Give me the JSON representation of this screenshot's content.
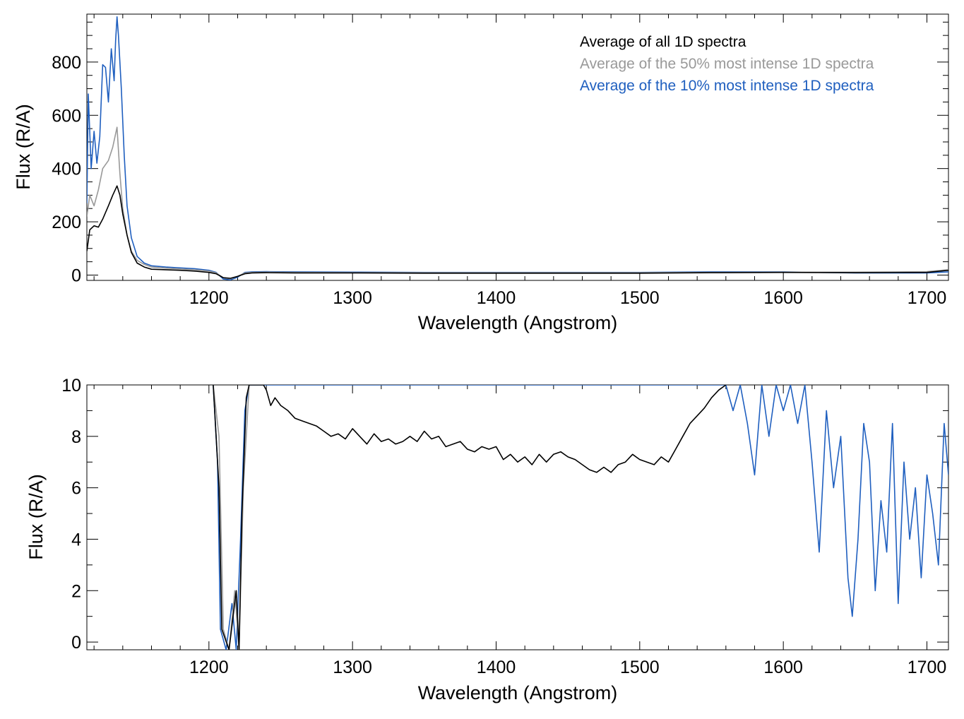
{
  "colors": {
    "all": "#000000",
    "top50": "#999999",
    "top10": "#1f5fbf"
  },
  "chart_data": [
    {
      "type": "line",
      "title": "",
      "xlabel": "Wavelength (Angstrom)",
      "ylabel": "Flux (R/A)",
      "xlim": [
        1115,
        1715
      ],
      "ylim": [
        -20,
        980
      ],
      "xticks": [
        1200,
        1300,
        1400,
        1500,
        1600,
        1700
      ],
      "xtick_labels": [
        "1200",
        "1300",
        "1400",
        "1500",
        "1600",
        "1700"
      ],
      "yticks": [
        0,
        200,
        400,
        600,
        800
      ],
      "ytick_labels": [
        "0",
        "200",
        "400",
        "600",
        "800"
      ],
      "legend": {
        "placement": "top-right",
        "entries": [
          "Average of all 1D spectra",
          "Average of the 50% most intense 1D spectra",
          "Average of the 10% most intense 1D spectra"
        ]
      },
      "series": [
        {
          "name": "Average of all 1D spectra",
          "x": [
            1115,
            1117,
            1120,
            1123,
            1126,
            1130,
            1133,
            1136,
            1138,
            1140,
            1143,
            1146,
            1150,
            1155,
            1160,
            1170,
            1180,
            1190,
            1200,
            1205,
            1210,
            1215,
            1220,
            1225,
            1230,
            1240,
            1260,
            1300,
            1350,
            1400,
            1450,
            1500,
            1550,
            1600,
            1650,
            1700,
            1715
          ],
          "y": [
            90,
            170,
            185,
            180,
            210,
            260,
            300,
            335,
            300,
            230,
            150,
            85,
            45,
            30,
            22,
            20,
            18,
            15,
            10,
            5,
            -10,
            -12,
            -5,
            5,
            8,
            9,
            8,
            8,
            7,
            7,
            7,
            7,
            9,
            10,
            9,
            10,
            18
          ]
        },
        {
          "name": "Average of the 50% most intense 1D spectra",
          "x": [
            1115,
            1117,
            1120,
            1123,
            1126,
            1130,
            1133,
            1136,
            1138,
            1140,
            1143,
            1146,
            1150,
            1155,
            1160,
            1170,
            1180,
            1190,
            1200,
            1205,
            1210,
            1215,
            1220,
            1225,
            1230,
            1240,
            1260,
            1300,
            1350,
            1400,
            1450,
            1500,
            1550,
            1600,
            1650,
            1700,
            1715
          ],
          "y": [
            220,
            300,
            260,
            320,
            400,
            430,
            480,
            555,
            380,
            250,
            150,
            90,
            55,
            40,
            30,
            26,
            23,
            20,
            15,
            8,
            -10,
            -14,
            -5,
            8,
            10,
            11,
            10,
            9,
            9,
            9,
            9,
            9,
            10,
            11,
            11,
            13,
            20
          ]
        },
        {
          "name": "Average of the 10% most intense 1D spectra",
          "x": [
            1115,
            1116,
            1118,
            1120,
            1122,
            1124,
            1126,
            1128,
            1130,
            1132,
            1134,
            1135,
            1136,
            1137,
            1139,
            1141,
            1143,
            1146,
            1150,
            1155,
            1160,
            1170,
            1180,
            1190,
            1200,
            1205,
            1210,
            1215,
            1220,
            1225,
            1230,
            1240,
            1260,
            1300,
            1350,
            1400,
            1450,
            1500,
            1550,
            1600,
            1650,
            1700,
            1715
          ],
          "y": [
            270,
            680,
            400,
            540,
            420,
            520,
            790,
            780,
            650,
            850,
            730,
            880,
            970,
            900,
            700,
            450,
            260,
            140,
            70,
            45,
            35,
            30,
            27,
            24,
            18,
            10,
            -15,
            -18,
            -8,
            10,
            12,
            13,
            12,
            11,
            10,
            10,
            10,
            10,
            12,
            12,
            8,
            8,
            12
          ]
        }
      ]
    },
    {
      "type": "line",
      "title": "",
      "xlabel": "Wavelength (Angstrom)",
      "ylabel": "Flux (R/A)",
      "xlim": [
        1115,
        1715
      ],
      "ylim": [
        -0.3,
        10
      ],
      "xticks": [
        1200,
        1300,
        1400,
        1500,
        1600,
        1700
      ],
      "xtick_labels": [
        "1200",
        "1300",
        "1400",
        "1500",
        "1600",
        "1700"
      ],
      "yticks": [
        0,
        2,
        4,
        6,
        8,
        10
      ],
      "ytick_labels": [
        "0",
        "2",
        "4",
        "6",
        "8",
        "10"
      ],
      "series": [
        {
          "name": "Average of all 1D spectra",
          "x": [
            1203,
            1207,
            1209,
            1214,
            1219,
            1221,
            1223,
            1226,
            1228,
            1232,
            1238,
            1240,
            1243,
            1246,
            1250,
            1255,
            1260,
            1265,
            1270,
            1275,
            1280,
            1285,
            1290,
            1295,
            1300,
            1305,
            1310,
            1315,
            1320,
            1325,
            1330,
            1335,
            1340,
            1345,
            1350,
            1355,
            1360,
            1365,
            1370,
            1375,
            1380,
            1385,
            1390,
            1395,
            1400,
            1405,
            1410,
            1415,
            1420,
            1425,
            1430,
            1435,
            1440,
            1445,
            1450,
            1455,
            1460,
            1465,
            1470,
            1475,
            1480,
            1485,
            1490,
            1495,
            1500,
            1505,
            1510,
            1515,
            1520,
            1525,
            1530,
            1535,
            1540,
            1545,
            1550,
            1555,
            1560
          ],
          "y": [
            10,
            6,
            0.5,
            -0.3,
            2,
            -0.3,
            5,
            9.5,
            10,
            10,
            10,
            9.8,
            9.2,
            9.5,
            9.2,
            9.0,
            8.7,
            8.6,
            8.5,
            8.4,
            8.2,
            8.0,
            8.1,
            7.9,
            8.3,
            8.0,
            7.7,
            8.1,
            7.8,
            7.9,
            7.7,
            7.8,
            8.0,
            7.8,
            8.2,
            7.9,
            8.0,
            7.6,
            7.7,
            7.8,
            7.5,
            7.4,
            7.6,
            7.5,
            7.6,
            7.1,
            7.3,
            7.0,
            7.2,
            6.9,
            7.3,
            7.0,
            7.3,
            7.4,
            7.2,
            7.1,
            6.9,
            6.7,
            6.6,
            6.8,
            6.6,
            6.9,
            7.0,
            7.3,
            7.1,
            7.0,
            6.9,
            7.2,
            7.0,
            7.5,
            8.0,
            8.5,
            8.8,
            9.1,
            9.5,
            9.8,
            10
          ]
        },
        {
          "name": "Average of the 50% most intense 1D spectra",
          "x": [
            1203,
            1207,
            1210,
            1214,
            1218,
            1221,
            1224,
            1228
          ],
          "y": [
            10,
            8,
            0.5,
            -0.3,
            2,
            -0.3,
            6,
            10
          ]
        },
        {
          "name": "Average of the 10% most intense 1D spectra",
          "x": [
            1203,
            1206,
            1208,
            1212,
            1216,
            1219,
            1222,
            1225,
            1228,
            1560,
            1565,
            1570,
            1575,
            1580,
            1585,
            1590,
            1595,
            1600,
            1605,
            1610,
            1615,
            1620,
            1625,
            1630,
            1635,
            1640,
            1645,
            1648,
            1652,
            1656,
            1660,
            1664,
            1668,
            1672,
            1676,
            1680,
            1684,
            1688,
            1692,
            1696,
            1700,
            1704,
            1708,
            1712,
            1715
          ],
          "y": [
            10,
            7,
            0.5,
            -0.3,
            1.5,
            -0.3,
            4,
            9,
            10,
            10,
            9,
            10,
            8.5,
            6.5,
            10,
            8,
            10,
            9,
            10,
            8.5,
            10,
            7,
            3.5,
            9,
            6,
            8,
            2.5,
            1.0,
            4,
            8.5,
            7,
            2,
            5.5,
            3.5,
            8.5,
            1.5,
            7,
            4,
            6,
            2.5,
            6.5,
            5,
            3,
            8.5,
            6.5
          ]
        }
      ]
    }
  ]
}
